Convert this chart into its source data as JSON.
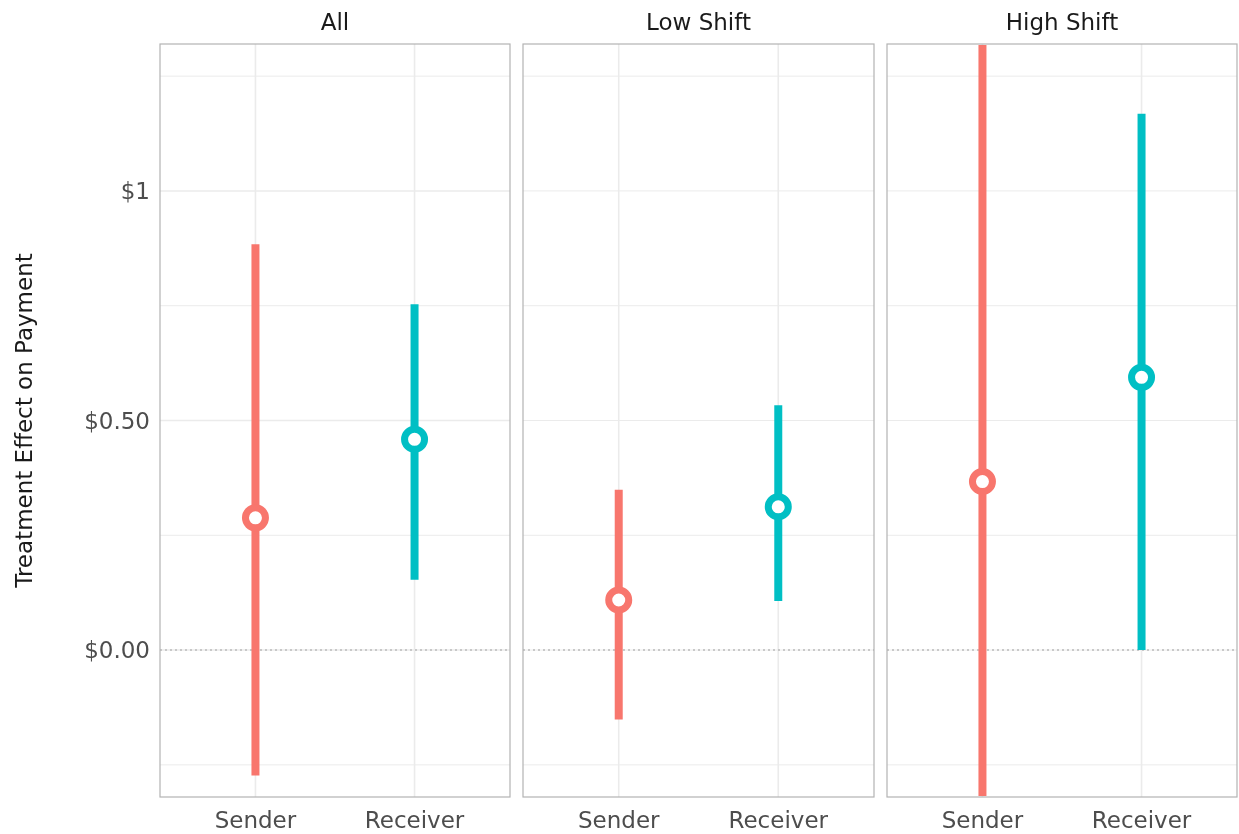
{
  "chart_data": [
    {
      "type": "scatter",
      "title": "All",
      "ylabel": "Treatment Effect on Payment",
      "categories": [
        "Sender",
        "Receiver"
      ],
      "values": [
        0.288,
        0.459
      ],
      "errors": [
        [
          -0.273,
          0.884
        ],
        [
          0.153,
          0.753
        ]
      ],
      "colors": [
        "#f8766d",
        "#00bfc4"
      ],
      "marker": "circle",
      "ylim": [
        -0.32,
        1.32
      ],
      "yticks": [
        {
          "value": -0.25,
          "label": null
        },
        {
          "value": 0,
          "label": "$0.00"
        },
        {
          "value": 0.25,
          "label": null
        },
        {
          "value": 0.5,
          "label": "$0.50"
        },
        {
          "value": 0.75,
          "label": null
        },
        {
          "value": 1,
          "label": "$1"
        },
        {
          "value": 1.25,
          "label": null
        }
      ],
      "grid": true,
      "ref_lines": [
        {
          "axis": "y",
          "value": 0,
          "color": "#bbbbbb",
          "line_style": "dotted"
        }
      ]
    },
    {
      "type": "scatter",
      "title": "Low Shift",
      "categories": [
        "Sender",
        "Receiver"
      ],
      "values": [
        0.109,
        0.312
      ],
      "errors": [
        [
          -0.151,
          0.349
        ],
        [
          0.107,
          0.533
        ]
      ],
      "colors": [
        "#f8766d",
        "#00bfc4"
      ],
      "marker": "circle",
      "ylim": [
        -0.32,
        1.32
      ],
      "yticks": [
        {
          "value": -0.25,
          "label": null
        },
        {
          "value": 0,
          "label": null
        },
        {
          "value": 0.25,
          "label": null
        },
        {
          "value": 0.5,
          "label": null
        },
        {
          "value": 0.75,
          "label": null
        },
        {
          "value": 1,
          "label": null
        },
        {
          "value": 1.25,
          "label": null
        }
      ],
      "grid": true,
      "tick_labels": "x",
      "ref_lines": [
        {
          "axis": "y",
          "value": 0,
          "color": "#bbbbbb",
          "line_style": "dotted"
        }
      ]
    },
    {
      "type": "scatter",
      "title": "High Shift",
      "categories": [
        "Sender",
        "Receiver"
      ],
      "values": [
        0.367,
        0.594
      ],
      "errors": [
        [
          -0.318,
          1.318
        ],
        [
          0.0,
          1.168
        ]
      ],
      "colors": [
        "#f8766d",
        "#00bfc4"
      ],
      "marker": "circle",
      "ylim": [
        -0.32,
        1.32
      ],
      "yticks": [
        {
          "value": -0.25,
          "label": null
        },
        {
          "value": 0,
          "label": null
        },
        {
          "value": 0.25,
          "label": null
        },
        {
          "value": 0.5,
          "label": null
        },
        {
          "value": 0.75,
          "label": null
        },
        {
          "value": 1,
          "label": null
        },
        {
          "value": 1.25,
          "label": null
        }
      ],
      "grid": true,
      "tick_labels": "x",
      "ref_lines": [
        {
          "axis": "y",
          "value": 0,
          "color": "#bbbbbb",
          "line_style": "dotted"
        }
      ]
    }
  ]
}
